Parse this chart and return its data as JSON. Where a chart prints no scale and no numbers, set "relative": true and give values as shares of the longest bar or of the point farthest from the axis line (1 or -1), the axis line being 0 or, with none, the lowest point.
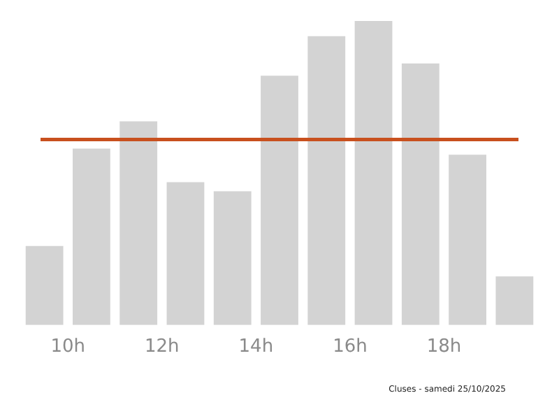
{
  "chart_data": {
    "type": "bar",
    "relative": true,
    "x": [
      9.5,
      10.5,
      11.5,
      12.5,
      13.5,
      14.5,
      15.5,
      16.5,
      17.5,
      18.5,
      19.5
    ],
    "values": [
      0.26,
      0.58,
      0.67,
      0.47,
      0.44,
      0.82,
      0.95,
      1,
      0.86,
      0.56,
      0.16
    ],
    "color": "#d3d3d3",
    "xlim": [
      9,
      20
    ],
    "xticks": [
      {
        "value": 10,
        "label": "10h"
      },
      {
        "value": 12,
        "label": "12h"
      },
      {
        "value": 14,
        "label": "14h"
      },
      {
        "value": 16,
        "label": "16h"
      },
      {
        "value": 18,
        "label": "18h"
      }
    ],
    "ref_lines": [
      {
        "axis": "y",
        "value": 0.61,
        "color": "#c8501e"
      }
    ],
    "grid": false,
    "legend": false,
    "annotations": [
      "Cluses - samedi 25/10/2025"
    ]
  }
}
